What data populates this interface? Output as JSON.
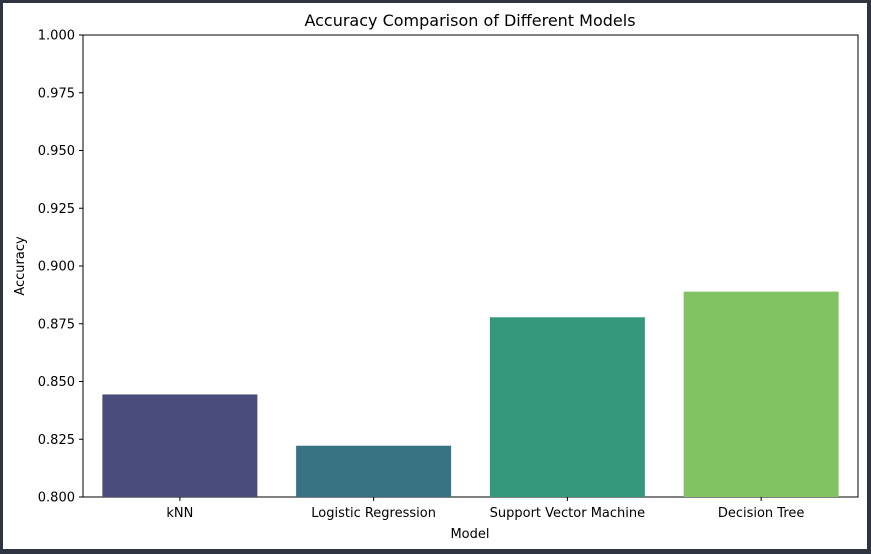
{
  "chart_data": {
    "type": "bar",
    "title": "Accuracy Comparison of Different Models",
    "xlabel": "Model",
    "ylabel": "Accuracy",
    "categories": [
      "kNN",
      "Logistic Regression",
      "Support Vector Machine",
      "Decision Tree"
    ],
    "values": [
      0.8444,
      0.8222,
      0.8778,
      0.8889
    ],
    "colors": [
      "#4a4c7c",
      "#387383",
      "#35987c",
      "#81c262"
    ],
    "ylim": [
      0.8,
      1.0
    ],
    "yticks": [
      "0.800",
      "0.825",
      "0.850",
      "0.875",
      "0.900",
      "0.925",
      "0.950",
      "0.975",
      "1.000"
    ],
    "grid": false,
    "legend": "none"
  }
}
